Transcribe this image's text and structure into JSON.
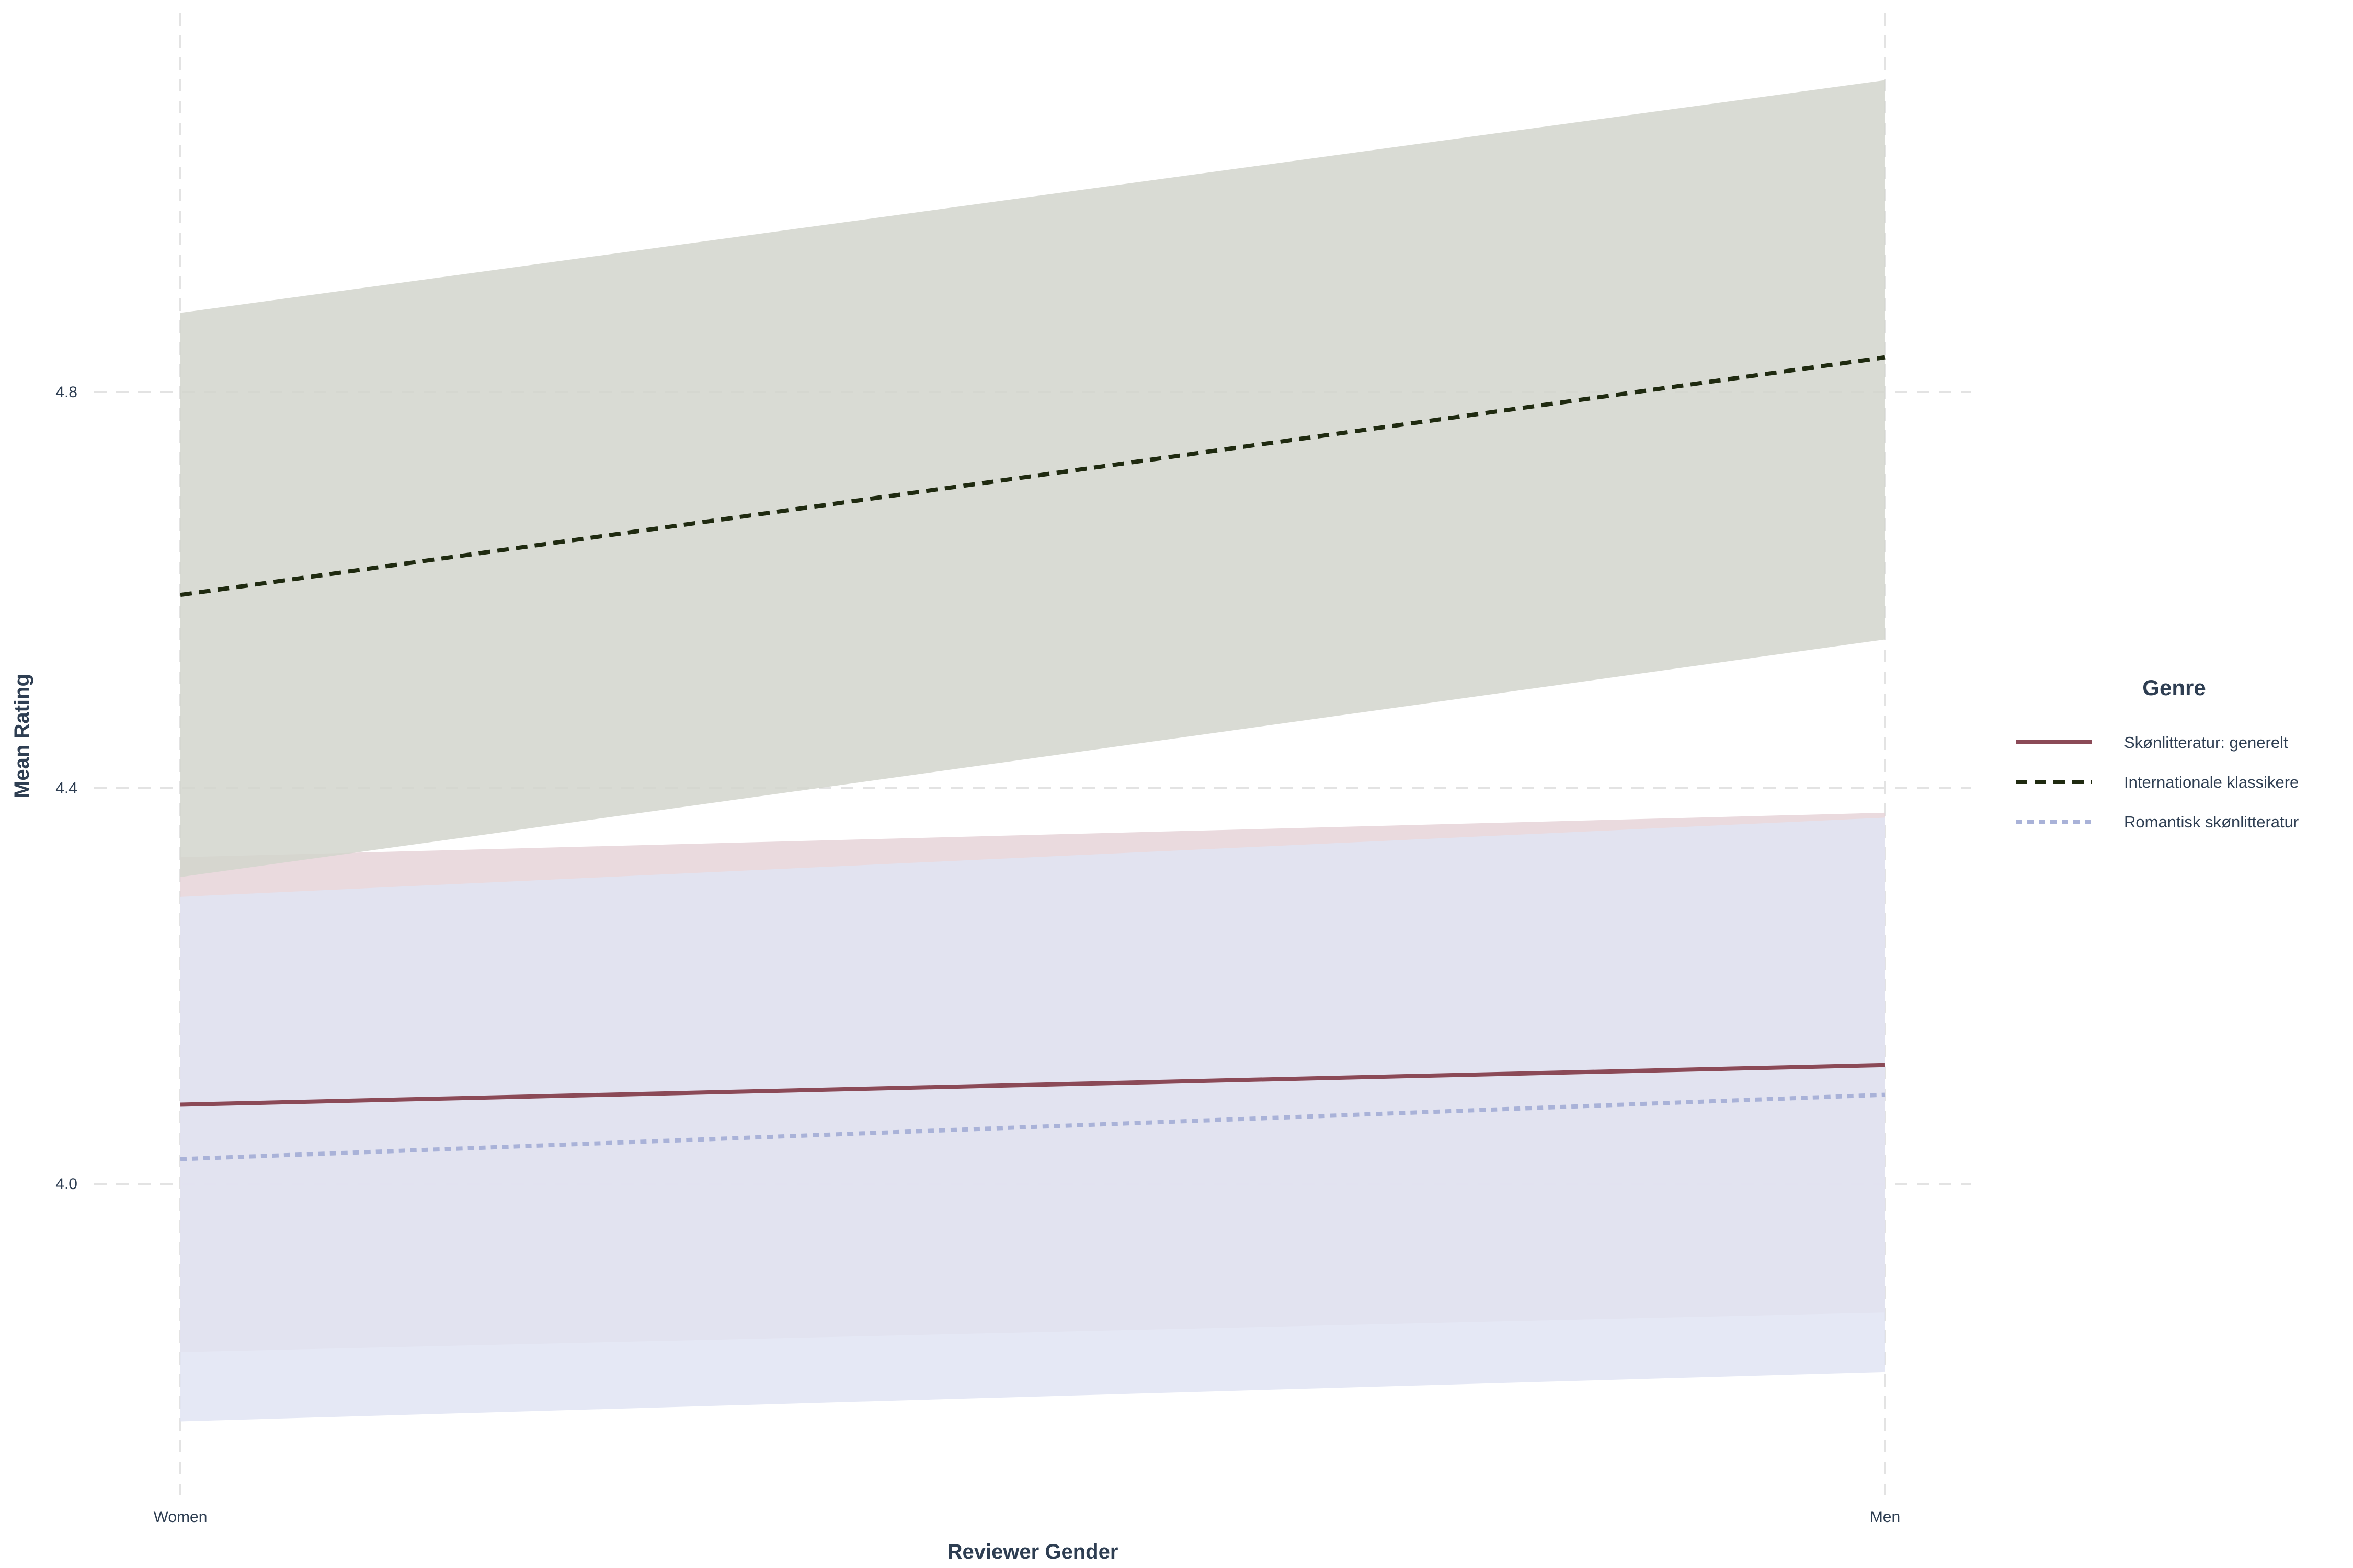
{
  "chart_data": {
    "type": "line",
    "title": "",
    "xlabel": "Reviewer Gender",
    "ylabel": "Mean Rating",
    "categories": [
      "Women",
      "Men"
    ],
    "ylim": [
      3.71,
      5.2
    ],
    "yticks": [
      4.0,
      4.4,
      4.8
    ],
    "ytick_labels": [
      "4.0",
      "4.4",
      "4.8"
    ],
    "grid": true,
    "legend": {
      "title": "Genre",
      "placement": "right"
    },
    "series": [
      {
        "name": "Skønlitteratur: generelt",
        "values": [
          4.08,
          4.12
        ],
        "ci_lower": [
          3.83,
          3.87
        ],
        "ci_upper": [
          4.33,
          4.375
        ],
        "color": "#8b4a57",
        "fill": "#e6d4d8",
        "dash": "solid"
      },
      {
        "name": "Internationale klassikere",
        "values": [
          4.595,
          4.835
        ],
        "ci_lower": [
          4.31,
          4.55
        ],
        "ci_upper": [
          4.88,
          5.115
        ],
        "color": "#1f2a10",
        "fill": "#d2d5cd",
        "dash": "dashed"
      },
      {
        "name": "Romantisk skønlitteratur",
        "values": [
          4.025,
          4.09
        ],
        "ci_lower": [
          3.76,
          3.81
        ],
        "ci_upper": [
          4.29,
          4.37
        ],
        "color": "#a9b2d8",
        "fill": "#e0e4f3",
        "dash": "dotted"
      }
    ]
  }
}
